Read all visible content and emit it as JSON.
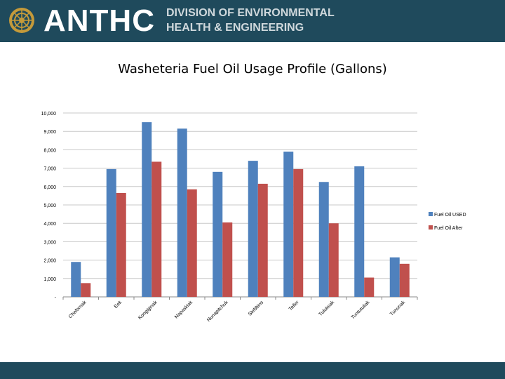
{
  "header": {
    "brand": "ANTHC",
    "division_line1": "DIVISION OF ENVIRONMENTAL",
    "division_line2": "HEALTH & ENGINEERING",
    "background_color": "#1f4a5c"
  },
  "slide": {
    "title": "Washeteria Fuel Oil Usage Profile (Gallons)"
  },
  "chart_data": {
    "type": "bar",
    "title": "",
    "xlabel": "",
    "ylabel": "",
    "categories": [
      "Chefornak",
      "Eek",
      "Kongiginak",
      "Napaskiak",
      "Nunapitchuk",
      "Stebbins",
      "Teller",
      "Tuluksak",
      "Tuntutuliak",
      "Tununak"
    ],
    "series": [
      {
        "name": "Fuel Oil USED",
        "color": "#4f81bd",
        "values": [
          1900,
          6950,
          9500,
          9150,
          6800,
          7400,
          7900,
          6250,
          7100,
          2150
        ]
      },
      {
        "name": "Fuel Oil After",
        "color": "#c0504d",
        "values": [
          750,
          5650,
          7350,
          5850,
          4050,
          6150,
          6950,
          4000,
          1050,
          1800
        ]
      }
    ],
    "ylim": [
      0,
      10000
    ],
    "yticks": [
      0,
      1000,
      2000,
      3000,
      4000,
      5000,
      6000,
      7000,
      8000,
      9000,
      10000
    ],
    "ytick_labels": [
      "-",
      "1,000",
      "2,000",
      "3,000",
      "4,000",
      "5,000",
      "6,000",
      "7,000",
      "8,000",
      "9,000",
      "10,000"
    ],
    "grid": true,
    "legend_position": "right"
  }
}
